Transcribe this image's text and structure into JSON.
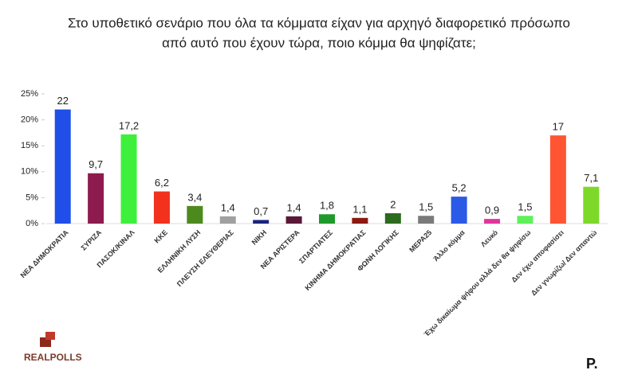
{
  "chart_data": {
    "type": "bar",
    "title": [
      "Στο υποθετικό σενάριο που όλα τα κόμματα είχαν για αρχηγό διαφορετικό πρόσωπο",
      "από αυτό που έχουν τώρα, ποιο κόμμα θα ψηφίζατε;"
    ],
    "categories": [
      "ΝΕΑ ΔΗΜΟΚΡΑΤΙΑ",
      "ΣΥΡΙΖΑ",
      "ΠΑΣΟΚ/ΚΙΝΑΛ",
      "ΚΚΕ",
      "ΕΛΛΗΝΙΚΗ ΛΥΣΗ",
      "ΠΛΕΥΣΗ ΕΛΕΥΘΕΡΙΑΣ",
      "ΝΙΚΗ",
      "ΝΕΑ ΑΡΙΣΤΕΡΑ",
      "ΣΠΑΡΤΙΑΤΕΣ",
      "ΚΙΝΗΜΑ ΔΗΜΟΚΡΑΤΙΑΣ",
      "ΦΩΝΗ ΛΟΓΙΚΗΣ",
      "ΜΕΡΑ25",
      "Άλλο κόμμα",
      "Λευκό",
      "Έχω δικαίωμα ψήφου αλλά δεν θα ψηφίσω",
      "Δεν έχω αποφασίσει",
      "Δεν γνωρίζω/ Δεν απαντώ"
    ],
    "values": [
      22,
      9.7,
      17.2,
      6.2,
      3.4,
      1.4,
      0.7,
      1.4,
      1.8,
      1.1,
      2,
      1.5,
      5.2,
      0.9,
      1.5,
      17,
      7.1
    ],
    "value_labels": [
      "22",
      "9,7",
      "17,2",
      "6,2",
      "3,4",
      "1,4",
      "0,7",
      "1,4",
      "1,8",
      "1,1",
      "2",
      "1,5",
      "5,2",
      "0,9",
      "1,5",
      "17",
      "7,1"
    ],
    "colors": [
      "#1f4fe8",
      "#8e1b4e",
      "#3ef03c",
      "#f2321c",
      "#4d8a1e",
      "#a0a0a0",
      "#1a237e",
      "#5a1838",
      "#1e9a2a",
      "#8b1a10",
      "#2c6a1e",
      "#7a7a7a",
      "#2b5ae6",
      "#e0359a",
      "#60f05c",
      "#ff5533",
      "#7ed82a"
    ],
    "ylim": [
      0,
      25
    ],
    "yticks": [
      {
        "value": 0,
        "label": "0%"
      },
      {
        "value": 5,
        "label": "5%"
      },
      {
        "value": 10,
        "label": "10%"
      },
      {
        "value": 15,
        "label": "15%"
      },
      {
        "value": 20,
        "label": "20%"
      },
      {
        "value": 25,
        "label": "25%"
      }
    ]
  },
  "source_logo": "REALPOLLS",
  "publisher_logo": "P."
}
